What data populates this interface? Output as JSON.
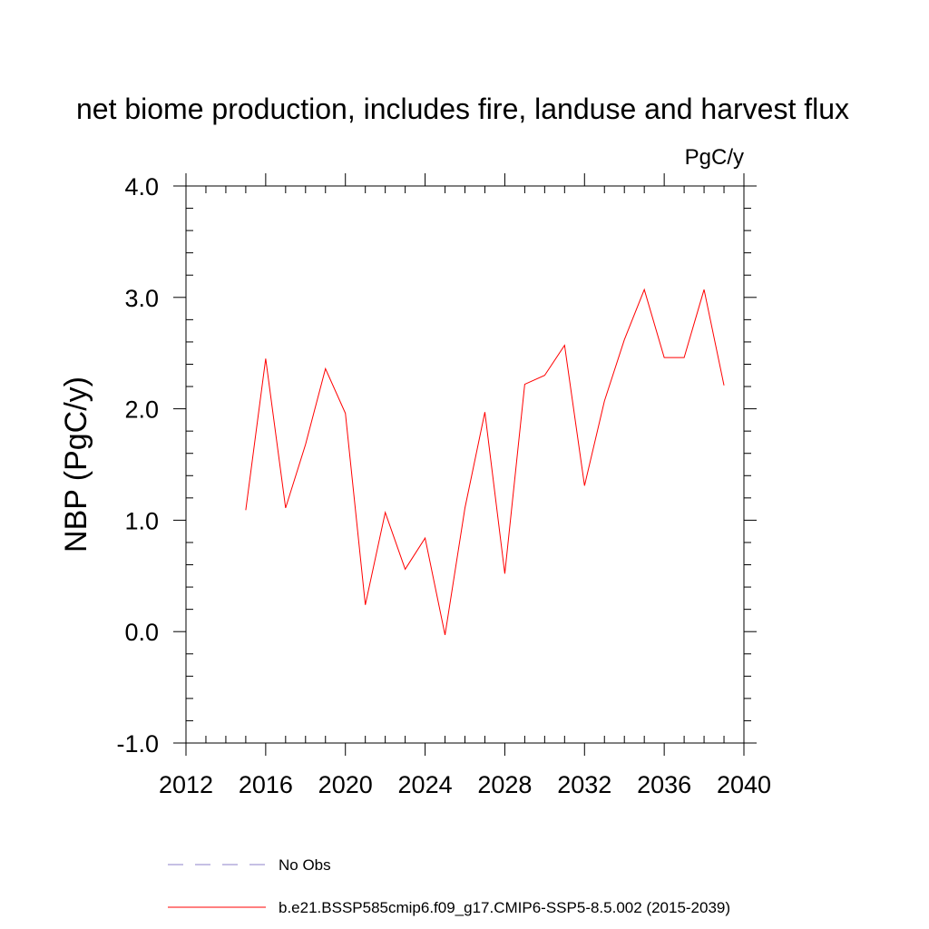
{
  "chart_data": {
    "type": "line",
    "title": "net biome production, includes fire, landuse and harvest flux",
    "units_label": "PgC/y",
    "ylabel": "NBP  (PgC/y)",
    "xlabel": "",
    "xlim": [
      2012,
      2040
    ],
    "ylim": [
      -1.0,
      4.0
    ],
    "x_ticks": [
      2012,
      2016,
      2020,
      2024,
      2028,
      2032,
      2036,
      2040
    ],
    "x_tick_labels": [
      "2012",
      "2016",
      "2020",
      "2024",
      "2028",
      "2032",
      "2036",
      "2040"
    ],
    "y_ticks": [
      -1.0,
      0.0,
      1.0,
      2.0,
      3.0,
      4.0
    ],
    "y_tick_labels": [
      "-1.0",
      "0.0",
      "1.0",
      "2.0",
      "3.0",
      "4.0"
    ],
    "grid": false,
    "legend_position": "bottom",
    "series": [
      {
        "name": "b.e21.BSSP585cmip6.f09_g17.CMIP6-SSP5-8.5.002 (2015-2039)",
        "color": "#ff0000",
        "style": "solid",
        "x": [
          2015,
          2016,
          2017,
          2018,
          2019,
          2020,
          2021,
          2022,
          2023,
          2024,
          2025,
          2026,
          2027,
          2028,
          2029,
          2030,
          2031,
          2032,
          2033,
          2034,
          2035,
          2036,
          2037,
          2038,
          2039
        ],
        "values": [
          1.09,
          2.45,
          1.11,
          1.68,
          2.36,
          1.96,
          0.24,
          1.07,
          0.56,
          0.84,
          -0.03,
          1.11,
          1.97,
          0.52,
          2.22,
          2.3,
          2.57,
          1.31,
          2.07,
          2.62,
          3.07,
          2.46,
          2.46,
          3.07,
          2.21
        ]
      },
      {
        "name": "No Obs",
        "color": "#8c82c8",
        "style": "dashed",
        "x": [],
        "values": []
      }
    ]
  }
}
